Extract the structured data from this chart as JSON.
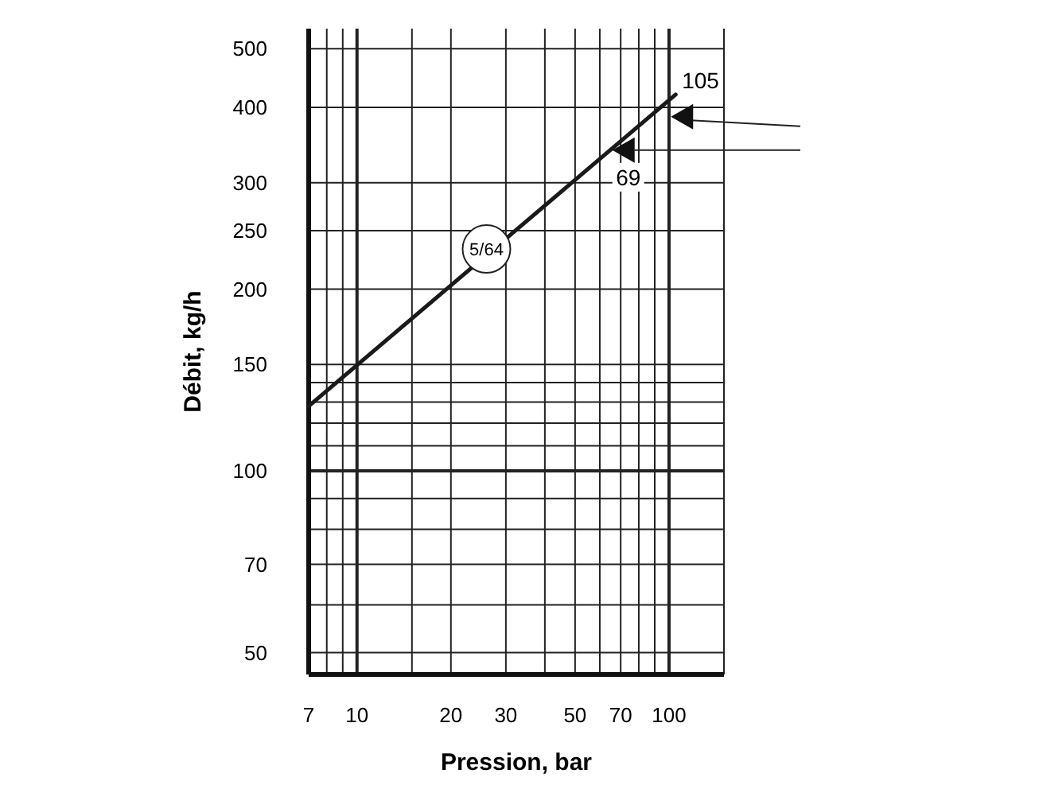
{
  "chart_data": {
    "type": "line",
    "xlabel": "Pression, bar",
    "ylabel": "Débit, kg/h",
    "log": "xy",
    "grid": true,
    "marker": "none",
    "line_style": "solid",
    "xlim": [
      7,
      150
    ],
    "ylim": [
      46,
      540
    ],
    "xticks": [
      7,
      {
        "value": 8,
        "label": null
      },
      {
        "value": 9,
        "label": null
      },
      10,
      {
        "value": 15,
        "label": null
      },
      20,
      30,
      {
        "value": 40,
        "label": null
      },
      50,
      {
        "value": 60,
        "label": null
      },
      70,
      {
        "value": 80,
        "label": null
      },
      {
        "value": 90,
        "label": null
      },
      100,
      {
        "value": 150,
        "label": null
      }
    ],
    "yticks": [
      50,
      {
        "value": 60,
        "label": null
      },
      70,
      {
        "value": 80,
        "label": null
      },
      {
        "value": 90,
        "label": null
      },
      100,
      {
        "value": 110,
        "label": null
      },
      {
        "value": 120,
        "label": null
      },
      {
        "value": 130,
        "label": null
      },
      {
        "value": 140,
        "label": null
      },
      150,
      200,
      250,
      300,
      400,
      500
    ],
    "series": [
      {
        "color": "#1a1a1a",
        "x": [
          7,
          105
        ],
        "values": [
          128,
          420
        ]
      }
    ],
    "annotations": [
      {
        "text": "105",
        "x": 105,
        "y": 420
      },
      {
        "text": "69",
        "x": 69,
        "y": 348
      },
      {
        "text": "5/64",
        "x": 26,
        "y": 233
      }
    ]
  }
}
